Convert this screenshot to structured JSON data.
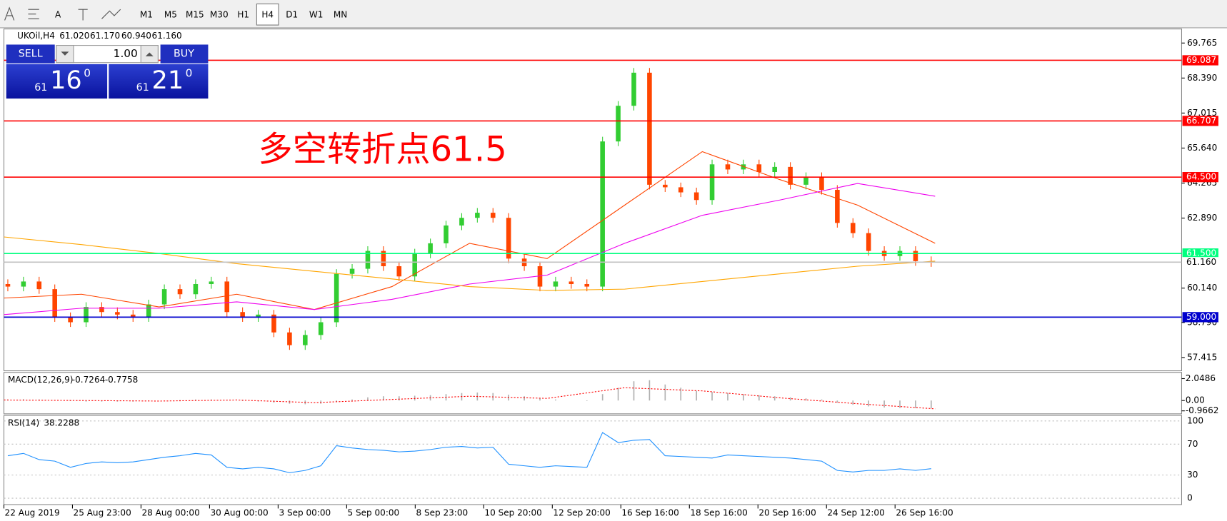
{
  "toolbar": {
    "timeframes": [
      "M1",
      "M5",
      "M15",
      "M30",
      "H1",
      "H4",
      "D1",
      "W1",
      "MN"
    ],
    "active": "H4",
    "text_tool": "A"
  },
  "symbol_info": {
    "symbol": "UKOil,H4",
    "open": "61.020",
    "high": "61.170",
    "low": "60.940",
    "close": "61.160"
  },
  "trade_panel": {
    "sell": "SELL",
    "buy": "BUY",
    "volume": "1.00",
    "bid": {
      "pre": "61",
      "big": "16",
      "sup": "0"
    },
    "ask": {
      "pre": "61",
      "big": "21",
      "sup": "0"
    }
  },
  "annotation": "多空转折点61.5",
  "price_axis": {
    "ylim": [
      56.893,
      70.318
    ],
    "ticks": [
      69.765,
      {
        "value": 68.39,
        "label": "68.390"
      },
      67.015,
      {
        "value": 65.64,
        "label": "65.640"
      },
      64.265,
      {
        "value": 62.89,
        "label": "62.890"
      },
      {
        "value": 60.14,
        "label": "60.140"
      },
      {
        "value": 58.79,
        "label": "58.790"
      },
      57.415
    ]
  },
  "levels": [
    {
      "value": 69.087,
      "color": "#ff0000"
    },
    {
      "value": 66.707,
      "color": "#ff0000"
    },
    {
      "value": 64.5,
      "label": "64.500",
      "color": "#ff0000"
    },
    {
      "value": 61.5,
      "label": "61.500",
      "color": "#00ff7f"
    },
    {
      "value": 61.16,
      "label": "61.160",
      "color": "#c0c0c0"
    },
    {
      "value": 59,
      "label": "59.000",
      "color": "#0000cd"
    }
  ],
  "candles": {
    "closes": [
      60.2,
      60.4,
      60.1,
      59.0,
      58.8,
      59.4,
      59.2,
      59.1,
      59.0,
      59.5,
      60.1,
      59.9,
      60.3,
      60.4,
      59.2,
      59.0,
      59.1,
      58.4,
      57.9,
      58.3,
      58.8,
      60.7,
      60.9,
      61.6,
      61.0,
      60.6,
      61.5,
      61.9,
      62.6,
      62.9,
      63.1,
      62.9,
      61.3,
      61.0,
      60.2,
      60.4,
      60.3,
      60.2,
      65.9,
      67.3,
      68.6,
      64.2,
      64.1,
      63.9,
      63.6,
      65.0,
      64.8,
      65.0,
      64.7,
      64.9,
      64.2,
      64.5,
      64.0,
      62.7,
      62.3,
      61.6,
      61.4,
      61.6,
      61.2,
      61.16
    ]
  },
  "moving_averages": [
    {
      "color": "#ff4500",
      "values": [
        59.75,
        59.9,
        59.4,
        59.9,
        59.3,
        60.2,
        61.9,
        61.3,
        63.4,
        65.5,
        64.4,
        63.4,
        61.9
      ]
    },
    {
      "color": "#ee00ee",
      "values": [
        59.1,
        59.35,
        59.35,
        59.6,
        59.3,
        59.7,
        60.3,
        60.65,
        61.9,
        63.0,
        63.6,
        64.25,
        63.75
      ]
    },
    {
      "color": "#ffa500",
      "values": [
        62.15,
        61.85,
        61.5,
        61.1,
        60.8,
        60.5,
        60.2,
        60.05,
        60.1,
        60.4,
        60.7,
        61.0,
        61.2
      ]
    }
  ],
  "dates": [
    "22 Aug 2019",
    "25 Aug 23:00",
    "28 Aug 00:00",
    "30 Aug 00:00",
    "3 Sep 00:00",
    "5 Sep 00:00",
    "8 Sep 23:00",
    "10 Sep 20:00",
    "12 Sep 20:00",
    "16 Sep 16:00",
    "18 Sep 16:00",
    "20 Sep 16:00",
    "24 Sep 12:00",
    "26 Sep 16:00"
  ],
  "macd": {
    "label": "MACD(12,26,9)",
    "ylim": [
      -1.244,
      2.633
    ],
    "ticks": [
      2.0486,
      {
        "value": 0,
        "label": "0.00"
      },
      -0.9662
    ],
    "histogram": [
      0.1,
      0.12,
      0.1,
      0.05,
      -0.05,
      -0.1,
      -0.1,
      -0.1,
      -0.1,
      -0.05,
      0,
      0.05,
      0.1,
      0.1,
      0.05,
      -0.05,
      -0.1,
      -0.2,
      -0.3,
      -0.35,
      -0.3,
      -0.1,
      0.1,
      0.3,
      0.4,
      0.4,
      0.45,
      0.5,
      0.6,
      0.7,
      0.75,
      0.7,
      0.55,
      0.4,
      0.25,
      0.1,
      0,
      -0.05,
      0.6,
      1.2,
      1.8,
      1.9,
      1.5,
      1.2,
      0.9,
      0.8,
      0.7,
      0.6,
      0.5,
      0.4,
      0.3,
      0.2,
      0.1,
      -0.2,
      -0.4,
      -0.55,
      -0.65,
      -0.7,
      -0.72,
      -0.7264
    ],
    "signal": [
      0.05,
      0,
      -0.05,
      0.05,
      -0.2,
      0.1,
      0.4,
      0.2,
      1.2,
      0.9,
      0.25,
      -0.3,
      -0.7758
    ]
  },
  "rsi": {
    "label": "RSI(14)",
    "ylim": [
      -8.2,
      107.2
    ],
    "ticks": [
      100,
      70,
      30,
      0
    ],
    "values": [
      55,
      58,
      50,
      48,
      40,
      45,
      47,
      46,
      47,
      50,
      53,
      55,
      58,
      56,
      40,
      38,
      40,
      38,
      33,
      36,
      42,
      68,
      65,
      63,
      62,
      60,
      61,
      63,
      66,
      67,
      65,
      66,
      44,
      42,
      40,
      42,
      41,
      40,
      85,
      72,
      75,
      76,
      55,
      54,
      53,
      52,
      56,
      55,
      54,
      53,
      52,
      50,
      48,
      36,
      34,
      36,
      36,
      38,
      36,
      38.2288
    ]
  }
}
